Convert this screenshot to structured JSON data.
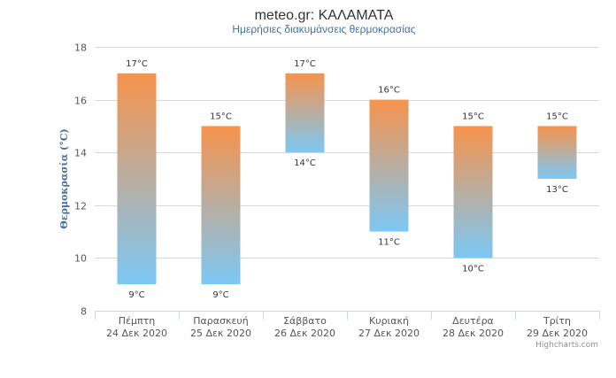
{
  "header": {
    "title": "meteo.gr: ΚΑΛΑΜΑΤΑ",
    "subtitle": "Ημερήσιες διακυμάνσεις θερμοκρασίας"
  },
  "credit": "Highcharts.com",
  "colors": {
    "bar_top": "#f7934c",
    "bar_bottom": "#7cc8f5",
    "grid": "#d8d8d8",
    "axis": "#ccd6eb"
  },
  "chart_data": {
    "type": "bar",
    "subtype": "columnrange",
    "ylabel": "Θερμοκρασία (°C)",
    "ylim": [
      8,
      18
    ],
    "yticks": [
      8,
      10,
      12,
      14,
      16,
      18
    ],
    "grid": true,
    "unit": "°C",
    "categories": [
      [
        "Πέμπτη",
        "24 Δεκ 2020"
      ],
      [
        "Παρασκευή",
        "25 Δεκ 2020"
      ],
      [
        "Σάββατο",
        "26 Δεκ 2020"
      ],
      [
        "Κυριακή",
        "27 Δεκ 2020"
      ],
      [
        "Δευτέρα",
        "28 Δεκ 2020"
      ],
      [
        "Τρίτη",
        "29 Δεκ 2020"
      ]
    ],
    "low": [
      9,
      9,
      14,
      11,
      10,
      13
    ],
    "high": [
      17,
      15,
      17,
      16,
      15,
      15
    ],
    "low_labels": [
      "9°C",
      "9°C",
      "14°C",
      "11°C",
      "10°C",
      "13°C"
    ],
    "high_labels": [
      "17°C",
      "15°C",
      "17°C",
      "16°C",
      "15°C",
      "15°C"
    ]
  }
}
